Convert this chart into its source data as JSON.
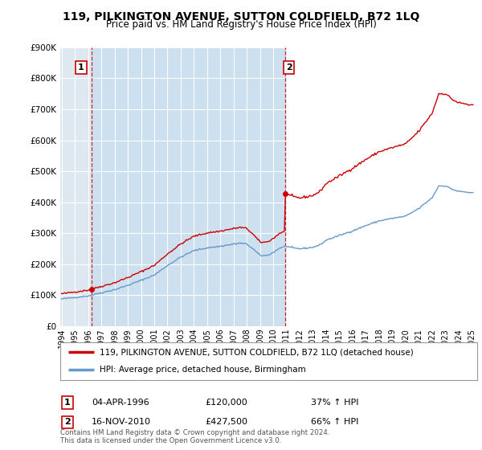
{
  "title": "119, PILKINGTON AVENUE, SUTTON COLDFIELD, B72 1LQ",
  "subtitle": "Price paid vs. HM Land Registry's House Price Index (HPI)",
  "property_color": "#cc0000",
  "hpi_color": "#6699cc",
  "hpi_color_fill": "#cce0f0",
  "background_color": "#ffffff",
  "legend_label_property": "119, PILKINGTON AVENUE, SUTTON COLDFIELD, B72 1LQ (detached house)",
  "legend_label_hpi": "HPI: Average price, detached house, Birmingham",
  "annotation1_date": "04-APR-1996",
  "annotation1_price": "£120,000",
  "annotation1_hpi": "37% ↑ HPI",
  "annotation2_date": "16-NOV-2010",
  "annotation2_price": "£427,500",
  "annotation2_hpi": "66% ↑ HPI",
  "footer": "Contains HM Land Registry data © Crown copyright and database right 2024.\nThis data is licensed under the Open Government Licence v3.0.",
  "trans1_x": 1996.27,
  "trans1_y": 120000,
  "trans2_x": 2010.88,
  "trans2_y": 427500,
  "xlim_min": 1993.9,
  "xlim_max": 2025.4,
  "ylim_min": 0,
  "ylim_max": 900000,
  "yticks": [
    0,
    100000,
    200000,
    300000,
    400000,
    500000,
    600000,
    700000,
    800000,
    900000
  ],
  "ytick_labels": [
    "£0",
    "£100K",
    "£200K",
    "£300K",
    "£400K",
    "£500K",
    "£600K",
    "£700K",
    "£800K",
    "£900K"
  ]
}
